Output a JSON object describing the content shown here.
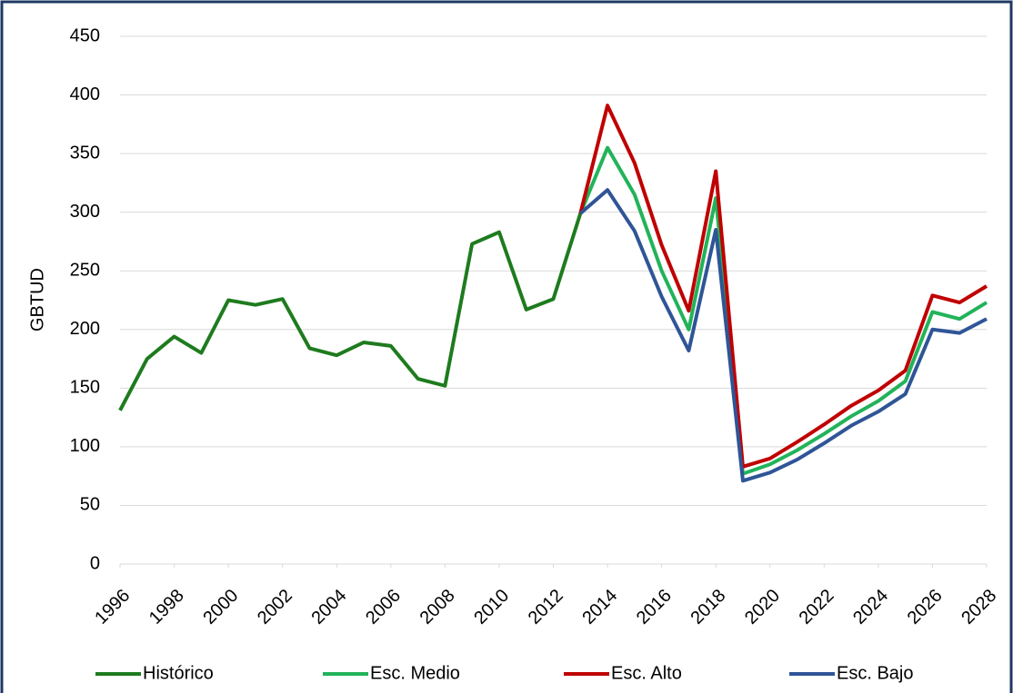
{
  "chart_data": {
    "type": "line",
    "y_label": "GBTUD",
    "x": [
      1996,
      1997,
      1998,
      1999,
      2000,
      2001,
      2002,
      2003,
      2004,
      2005,
      2006,
      2007,
      2008,
      2009,
      2010,
      2011,
      2012,
      2013,
      2014,
      2015,
      2016,
      2017,
      2018,
      2019,
      2020,
      2021,
      2022,
      2023,
      2024,
      2025,
      2026,
      2027,
      2028
    ],
    "xlim": [
      1996,
      2028
    ],
    "xticks": [
      1996,
      1998,
      2000,
      2002,
      2004,
      2006,
      2008,
      2010,
      2012,
      2014,
      2016,
      2018,
      2020,
      2022,
      2024,
      2026,
      2028
    ],
    "ylim": [
      0,
      450
    ],
    "yticks": [
      0,
      50,
      100,
      150,
      200,
      250,
      300,
      350,
      400,
      450
    ],
    "grid": true,
    "legend": "bottom",
    "series": [
      {
        "name": "Histórico",
        "color": "#1e7b1e",
        "values": [
          131,
          175,
          194,
          180,
          225,
          221,
          226,
          184,
          178,
          189,
          186,
          158,
          152,
          273,
          283,
          217,
          226,
          299,
          null,
          null,
          null,
          null,
          null,
          null,
          null,
          null,
          null,
          null,
          null,
          null,
          null,
          null,
          null
        ]
      },
      {
        "name": "Esc. Medio",
        "color": "#22b35a",
        "values": [
          null,
          null,
          null,
          null,
          null,
          null,
          null,
          null,
          null,
          null,
          null,
          null,
          null,
          null,
          null,
          null,
          null,
          299,
          355,
          315,
          250,
          200,
          312,
          77,
          85,
          97,
          111,
          126,
          139,
          156,
          215,
          209,
          223
        ]
      },
      {
        "name": "Esc. Alto",
        "color": "#c00000",
        "values": [
          null,
          null,
          null,
          null,
          null,
          null,
          null,
          null,
          null,
          null,
          null,
          null,
          null,
          null,
          null,
          null,
          null,
          299,
          391,
          342,
          272,
          216,
          335,
          83,
          90,
          104,
          119,
          135,
          148,
          165,
          229,
          223,
          237
        ]
      },
      {
        "name": "Esc. Bajo",
        "color": "#2f5597",
        "values": [
          null,
          null,
          null,
          null,
          null,
          null,
          null,
          null,
          null,
          null,
          null,
          null,
          null,
          null,
          null,
          null,
          null,
          299,
          319,
          284,
          228,
          182,
          285,
          71,
          78,
          89,
          103,
          118,
          130,
          145,
          200,
          197,
          209
        ]
      }
    ]
  }
}
